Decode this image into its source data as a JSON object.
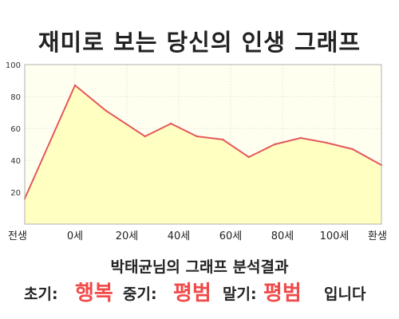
{
  "title": "재미로 보는 당신의 인생 그래프",
  "summary": "박태균님의 그래프 분석결과",
  "result": {
    "early_label": "초기:",
    "early_value": "행복",
    "mid_label": "중기:",
    "mid_value": "평범",
    "late_label": "말기:",
    "late_value": "평범",
    "ending": "입니다"
  },
  "colors": {
    "line": "#e4585c",
    "fill": "#ffffc2",
    "plot_background": "#fffff0",
    "highlight": "#f04a4a"
  },
  "chart_data": {
    "type": "area",
    "x_tick_labels": [
      "전생",
      "0세",
      "20세",
      "40세",
      "60세",
      "80세",
      "100세",
      "환생"
    ],
    "y_ticks": [
      20,
      40,
      60,
      80,
      100
    ],
    "ylim": [
      0,
      100
    ],
    "grid": true,
    "x": [
      "전생",
      "0세",
      "12세",
      "27세",
      "37세",
      "47세",
      "57세",
      "67세",
      "77세",
      "87세",
      "97세",
      "107세",
      "환생"
    ],
    "values": [
      16,
      87,
      71,
      55,
      63,
      55,
      53,
      42,
      50,
      54,
      51,
      47,
      37
    ]
  }
}
